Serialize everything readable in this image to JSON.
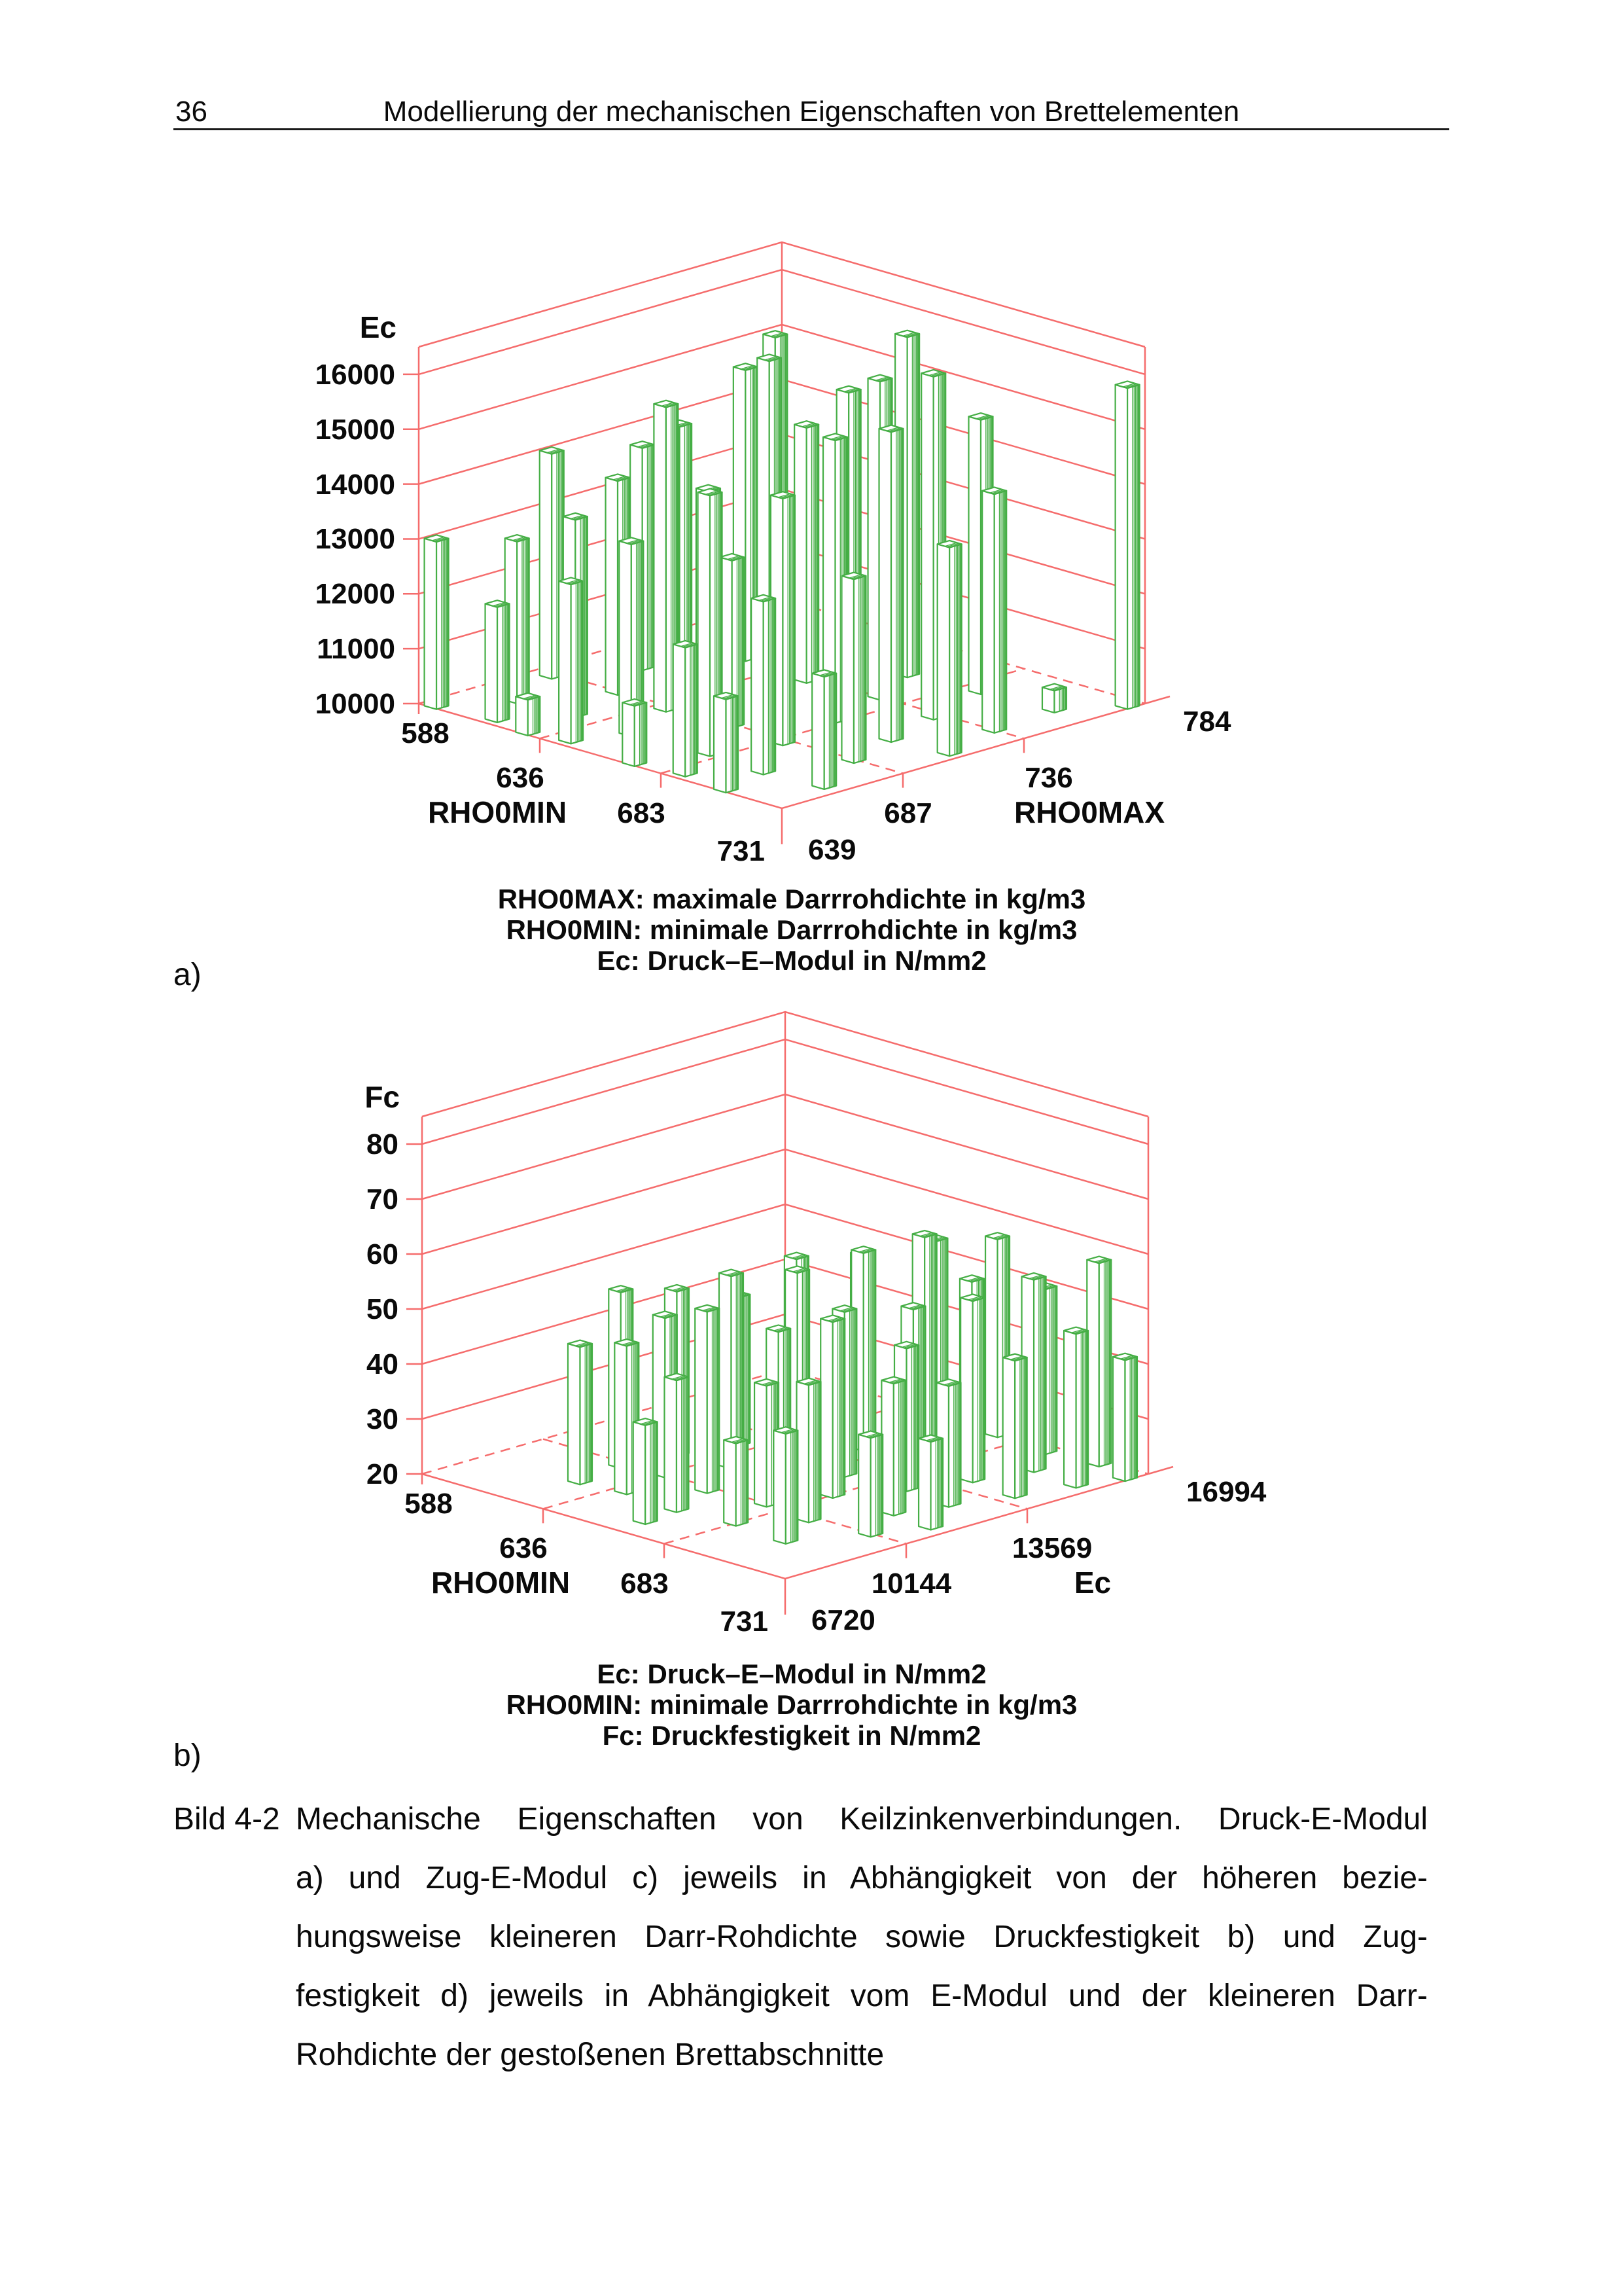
{
  "page": {
    "number": "36",
    "header_title": "Modellierung der mechanischen Eigenschaften von Brettelementen"
  },
  "colors": {
    "grid": "#f56c6c",
    "bar": "#45ae45",
    "text": "#0a0a0a"
  },
  "figure": {
    "id_label": "Bild 4-2",
    "panel_a": "a)",
    "panel_b": "b)",
    "caption_lines": [
      "Mechanische Eigenschaften von Keilzinkenverbindungen. Druck-E-Modul",
      "a) und Zug-E-Modul c) jeweils in Abhängigkeit von der höheren bezie-",
      "hungsweise kleineren Darr-Rohdichte sowie Druckfestigkeit b) und Zug-",
      "festigkeit d) jeweils in Abhängigkeit vom E-Modul und der kleineren Darr-",
      "Rohdichte der gestoßenen Brettabschnitte"
    ]
  },
  "chart_data": [
    {
      "type": "bar3d",
      "panel": "a",
      "title": "",
      "z_axis": {
        "label": "Ec",
        "unit": "N/mm2",
        "min": 10000,
        "ticks": [
          10000,
          11000,
          12000,
          13000,
          14000,
          15000,
          16000
        ]
      },
      "x_axis": {
        "label": "RHO0MIN",
        "unit": "kg/m3",
        "min": 588,
        "max": 731,
        "ticks": [
          588,
          636,
          683,
          731
        ]
      },
      "y_axis": {
        "label": "RHO0MAX",
        "unit": "kg/m3",
        "min": 639,
        "max": 784,
        "ticks": [
          639,
          687,
          736,
          784
        ]
      },
      "legend_lines": [
        "RHO0MAX: maximale Darrrohdichte in kg/m3",
        "RHO0MIN: minimale Darrrohdichte in kg/m3",
        "Ec: Druck–E–Modul in N/mm2"
      ],
      "bars_format": "[RHO0MIN kg/m3, RHO0MAX kg/m3, Ec N/mm2]",
      "bars": [
        [
          593,
          641,
          13050
        ],
        [
          614,
          644,
          12100
        ],
        [
          629,
          641,
          10650
        ],
        [
          643,
          644,
          12900
        ],
        [
          671,
          641,
          11100
        ],
        [
          688,
          644,
          12350
        ],
        [
          707,
          641,
          11700
        ],
        [
          605,
          661,
          12950
        ],
        [
          626,
          663,
          13600
        ],
        [
          650,
          661,
          13500
        ],
        [
          679,
          663,
          14750
        ],
        [
          702,
          661,
          13150
        ],
        [
          724,
          663,
          12050
        ],
        [
          595,
          685,
          14100
        ],
        [
          619,
          687,
          13900
        ],
        [
          640,
          685,
          15550
        ],
        [
          664,
          687,
          13050
        ],
        [
          686,
          685,
          14500
        ],
        [
          712,
          687,
          13350
        ],
        [
          607,
          709,
          14050
        ],
        [
          631,
          711,
          13550
        ],
        [
          657,
          709,
          16300
        ],
        [
          681,
          711,
          15150
        ],
        [
          705,
          709,
          15650
        ],
        [
          726,
          711,
          13800
        ],
        [
          598,
          733,
          14000
        ],
        [
          621,
          736,
          15300
        ],
        [
          648,
          733,
          14650
        ],
        [
          674,
          736,
          15800
        ],
        [
          698,
          733,
          16250
        ],
        [
          719,
          736,
          14350
        ],
        [
          612,
          757,
          15500
        ],
        [
          638,
          760,
          14800
        ],
        [
          664,
          757,
          16200
        ],
        [
          690,
          760,
          15000
        ],
        [
          717,
          762,
          10400
        ],
        [
          729,
          779,
          15850
        ]
      ]
    },
    {
      "type": "bar3d",
      "panel": "b",
      "title": "",
      "z_axis": {
        "label": "Fc",
        "unit": "N/mm2",
        "min": 20,
        "ticks": [
          20,
          30,
          40,
          50,
          60,
          70,
          80
        ]
      },
      "x_axis": {
        "label": "RHO0MIN",
        "unit": "kg/m3",
        "min": 588,
        "max": 731,
        "ticks": [
          588,
          636,
          683,
          731
        ]
      },
      "y_axis": {
        "label": "Ec",
        "unit": "N/mm2",
        "min": 6720,
        "max": 16994,
        "ticks": [
          6720,
          10144,
          13569,
          16994
        ]
      },
      "legend_lines": [
        "Ec: Druck–E–Modul in N/mm2",
        "RHO0MIN: minimale Darrrohdichte in kg/m3",
        "Fc: Druckfestigkeit in N/mm2"
      ],
      "bars_format": "[RHO0MIN kg/m3, Ec N/mm2, Fc N/mm2]",
      "bars": [
        [
          664,
          7576,
          38
        ],
        [
          624,
          8604,
          45
        ],
        [
          640,
          8775,
          47
        ],
        [
          662,
          8604,
          44
        ],
        [
          683,
          8775,
          35
        ],
        [
          705,
          8604,
          40
        ],
        [
          621,
          9973,
          52
        ],
        [
          636,
          10145,
          49
        ],
        [
          655,
          9973,
          53
        ],
        [
          676,
          10145,
          42
        ],
        [
          695,
          9973,
          45
        ],
        [
          717,
          10145,
          38
        ],
        [
          624,
          11343,
          50
        ],
        [
          643,
          11515,
          55
        ],
        [
          664,
          11343,
          48
        ],
        [
          683,
          11515,
          52
        ],
        [
          707,
          11515,
          44
        ],
        [
          724,
          11343,
          36
        ],
        [
          629,
          12713,
          47
        ],
        [
          650,
          12884,
          54
        ],
        [
          671,
          12713,
          50
        ],
        [
          693,
          12884,
          46
        ],
        [
          712,
          12713,
          42
        ],
        [
          633,
          14083,
          52
        ],
        [
          657,
          14254,
          56
        ],
        [
          679,
          14083,
          49
        ],
        [
          700,
          14254,
          53
        ],
        [
          719,
          14083,
          45
        ],
        [
          640,
          15453,
          51
        ],
        [
          662,
          15624,
          57
        ],
        [
          683,
          15453,
          52
        ],
        [
          705,
          15624,
          55
        ],
        [
          724,
          15453,
          48
        ],
        [
          652,
          16652,
          53
        ],
        [
          674,
          16823,
          56
        ],
        [
          695,
          16652,
          50
        ],
        [
          714,
          16823,
          57
        ],
        [
          729,
          16480,
          42
        ]
      ]
    }
  ]
}
